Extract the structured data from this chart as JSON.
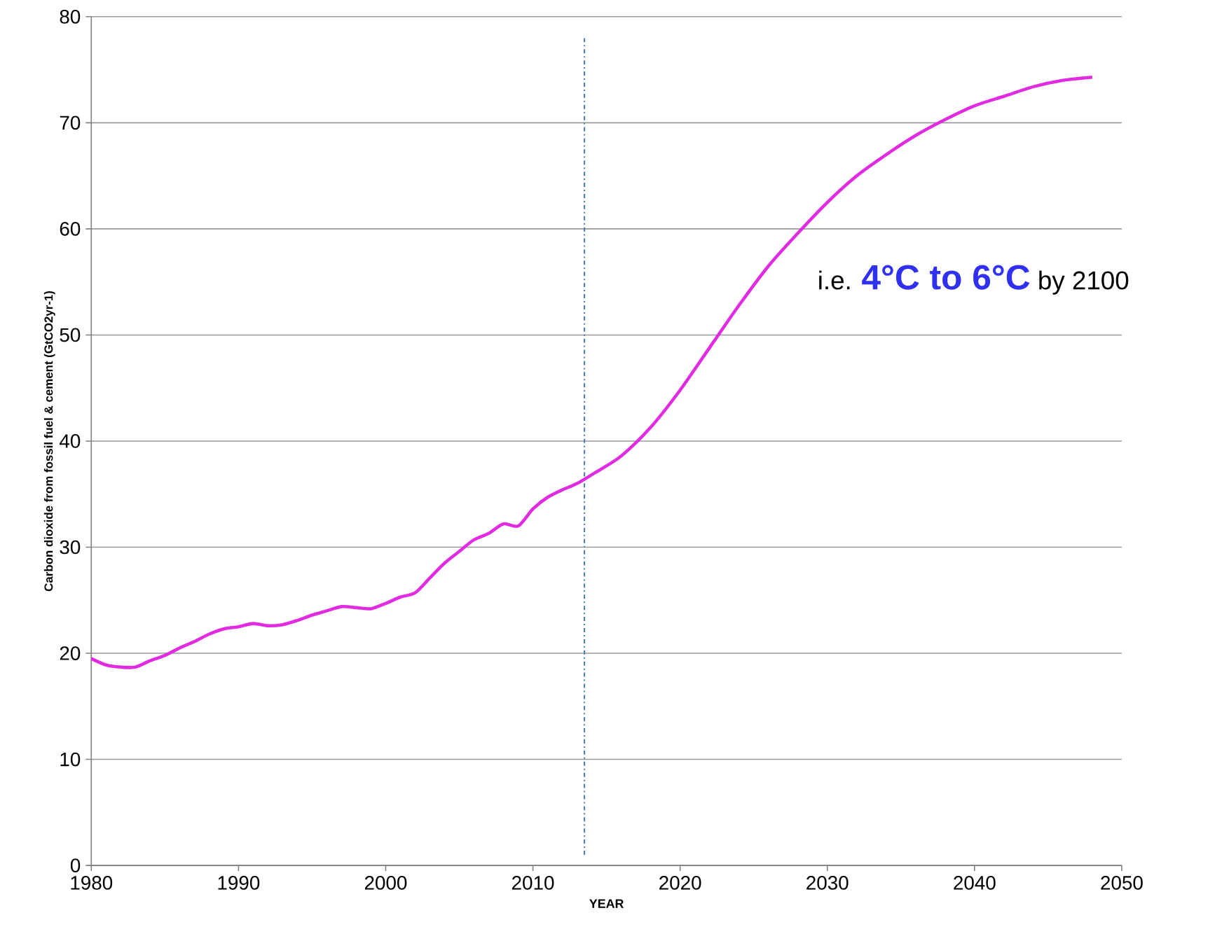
{
  "chart_data": {
    "type": "line",
    "xlabel": "YEAR",
    "ylabel": "Carbon dioxide from fossil fuel & cement (GtCO2yr-1)",
    "xlim": [
      1980,
      2050
    ],
    "xticks": [
      1980,
      1990,
      2000,
      2010,
      2020,
      2030,
      2040,
      2050
    ],
    "ylim": [
      0,
      80
    ],
    "yticks": [
      0,
      10,
      20,
      30,
      40,
      50,
      60,
      70,
      80
    ],
    "grid": "y",
    "marker": "none",
    "line_style": "solid",
    "series": [
      {
        "color": "#e02be0",
        "x": [
          1980,
          1981,
          1982,
          1983,
          1984,
          1985,
          1986,
          1987,
          1988,
          1989,
          1990,
          1991,
          1992,
          1993,
          1994,
          1995,
          1996,
          1997,
          1998,
          1999,
          2000,
          2001,
          2002,
          2003,
          2004,
          2005,
          2006,
          2007,
          2008,
          2009,
          2010,
          2011,
          2012,
          2013,
          2014.2,
          2016,
          2018,
          2020,
          2022,
          2024,
          2026,
          2028,
          2030,
          2032,
          2034,
          2036,
          2038,
          2040,
          2042,
          2044,
          2046,
          2048
        ],
        "values": [
          19.5,
          18.9,
          18.7,
          18.7,
          19.3,
          19.8,
          20.5,
          21.1,
          21.8,
          22.3,
          22.5,
          22.8,
          22.6,
          22.7,
          23.1,
          23.6,
          24.0,
          24.4,
          24.3,
          24.2,
          24.7,
          25.3,
          25.7,
          27.1,
          28.5,
          29.6,
          30.7,
          31.3,
          32.2,
          32.0,
          33.6,
          34.7,
          35.4,
          36.0,
          37.0,
          38.6,
          41.3,
          44.8,
          48.8,
          52.8,
          56.5,
          59.6,
          62.5,
          65.0,
          67.0,
          68.8,
          70.3,
          71.6,
          72.5,
          73.4,
          74.0,
          74.3
        ]
      }
    ],
    "ref_lines": [
      {
        "axis": "x",
        "value": 2013.5,
        "color": "#4a7ab8",
        "line_style": "dashdotted"
      }
    ],
    "annotations": [
      "i.e. **4°C to 6°C** by 2100"
    ]
  }
}
